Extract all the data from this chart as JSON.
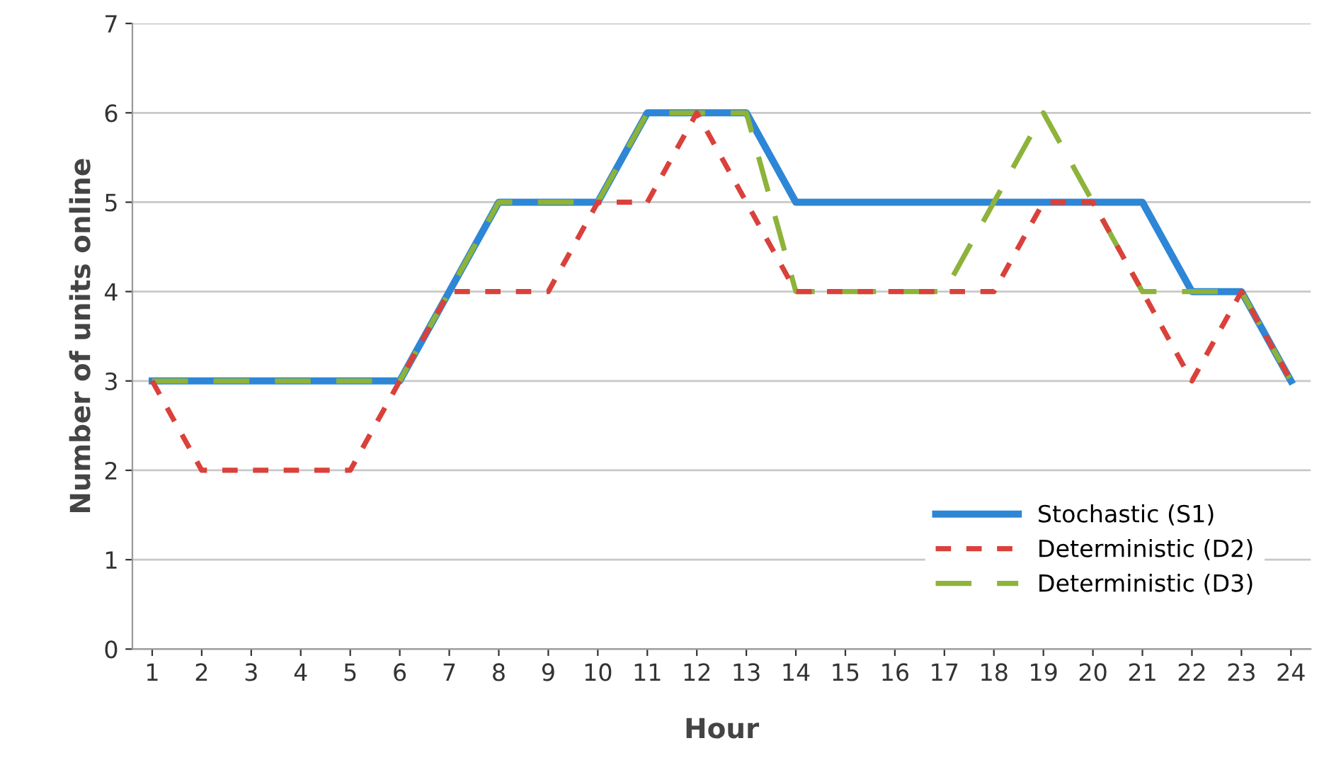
{
  "chart_data": {
    "type": "line",
    "xlabel": "Hour",
    "ylabel": "Number of units online",
    "categories": [
      "1",
      "2",
      "3",
      "4",
      "5",
      "6",
      "7",
      "8",
      "9",
      "10",
      "11",
      "12",
      "13",
      "14",
      "15",
      "16",
      "17",
      "18",
      "19",
      "20",
      "21",
      "22",
      "23",
      "24"
    ],
    "series": [
      {
        "name": "Stochastic (S1)",
        "color": "#2e86d6",
        "line_style": "solid",
        "values": [
          3,
          3,
          3,
          3,
          3,
          3,
          4,
          5,
          5,
          5,
          6,
          6,
          6,
          5,
          5,
          5,
          5,
          5,
          5,
          5,
          5,
          4,
          4,
          3
        ]
      },
      {
        "name": "Deterministic (D2)",
        "color": "#d9413a",
        "line_style": "dotted",
        "values": [
          3,
          2,
          2,
          2,
          2,
          3,
          4,
          4,
          4,
          5,
          5,
          6,
          5,
          4,
          4,
          4,
          4,
          4,
          5,
          5,
          4,
          3,
          4,
          3
        ]
      },
      {
        "name": "Deterministic (D3)",
        "color": "#8db33a",
        "line_style": "dashed",
        "values": [
          3,
          3,
          3,
          3,
          3,
          3,
          4,
          5,
          5,
          5,
          6,
          6,
          6,
          4,
          4,
          4,
          4,
          5,
          6,
          5,
          4,
          4,
          4,
          3
        ]
      }
    ],
    "ylim": [
      0,
      7
    ],
    "yticks": [
      0,
      1,
      2,
      3,
      4,
      5,
      6,
      7
    ],
    "grid": "y",
    "legend": "bottom right",
    "marker": "none"
  }
}
